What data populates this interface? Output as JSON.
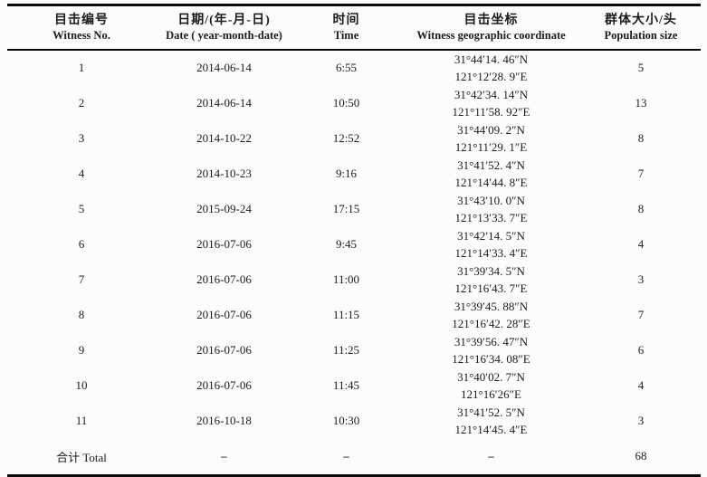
{
  "table": {
    "columns": [
      {
        "zh": "目击编号",
        "en": "Witness No."
      },
      {
        "zh": "日期/(年-月-日)",
        "en": "Date ( year-month-date)"
      },
      {
        "zh": "时间",
        "en": "Time"
      },
      {
        "zh": "目击坐标",
        "en": "Witness geographic coordinate"
      },
      {
        "zh": "群体大小/头",
        "en": "Population size"
      }
    ],
    "rows": [
      {
        "no": "1",
        "date": "2014-06-14",
        "time": "6:55",
        "coord_n": "31°44′14. 46″N",
        "coord_e": "121°12′28. 9″E",
        "size": "5"
      },
      {
        "no": "2",
        "date": "2014-06-14",
        "time": "10:50",
        "coord_n": "31°42′34. 14″N",
        "coord_e": "121°11′58. 92″E",
        "size": "13"
      },
      {
        "no": "3",
        "date": "2014-10-22",
        "time": "12:52",
        "coord_n": "31°44′09. 2″N",
        "coord_e": "121°11′29. 1″E",
        "size": "8"
      },
      {
        "no": "4",
        "date": "2014-10-23",
        "time": "9:16",
        "coord_n": "31°41′52. 4″N",
        "coord_e": "121°14′44. 8″E",
        "size": "7"
      },
      {
        "no": "5",
        "date": "2015-09-24",
        "time": "17:15",
        "coord_n": "31°43′10. 0″N",
        "coord_e": "121°13′33. 7″E",
        "size": "8"
      },
      {
        "no": "6",
        "date": "2016-07-06",
        "time": "9:45",
        "coord_n": "31°42′14. 5″N",
        "coord_e": "121°14′33. 4″E",
        "size": "4"
      },
      {
        "no": "7",
        "date": "2016-07-06",
        "time": "11:00",
        "coord_n": "31°39′34. 5″N",
        "coord_e": "121°16′43. 7″E",
        "size": "3"
      },
      {
        "no": "8",
        "date": "2016-07-06",
        "time": "11:15",
        "coord_n": "31°39′45. 88″N",
        "coord_e": "121°16′42. 28″E",
        "size": "7"
      },
      {
        "no": "9",
        "date": "2016-07-06",
        "time": "11:25",
        "coord_n": "31°39′56. 47″N",
        "coord_e": "121°16′34. 08″E",
        "size": "6"
      },
      {
        "no": "10",
        "date": "2016-07-06",
        "time": "11:45",
        "coord_n": "31°40′02. 7″N",
        "coord_e": "121°16′26″E",
        "size": "4"
      },
      {
        "no": "11",
        "date": "2016-10-18",
        "time": "10:30",
        "coord_n": "31°41′52. 5″N",
        "coord_e": "121°14′45. 4″E",
        "size": "3"
      }
    ],
    "total": {
      "label": "合计 Total",
      "date": "–",
      "time": "–",
      "coord": "–",
      "size": "68"
    }
  },
  "chart_data": {
    "type": "table",
    "title": "",
    "columns": [
      "Witness No.",
      "Date (year-month-date)",
      "Time",
      "Witness geographic coordinate",
      "Population size"
    ],
    "rows_count": 11,
    "population_total": 68
  },
  "colors": {
    "page_background": "#fcfcfb",
    "text": "#1c1c1c",
    "rule": "#0a0a0a"
  }
}
